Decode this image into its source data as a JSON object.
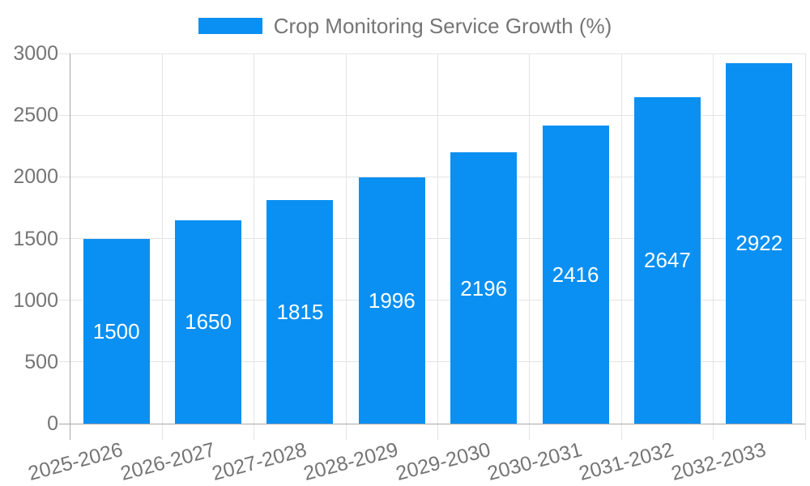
{
  "legend": {
    "label": "Crop Monitoring Service Growth (%)",
    "swatch_color": "#0a90f2",
    "text_color": "#757575"
  },
  "chart_data": {
    "type": "bar",
    "title": "Crop Monitoring Service Growth (%)",
    "categories": [
      "2025-2026",
      "2026-2027",
      "2027-2028",
      "2028-2029",
      "2029-2030",
      "2030-2031",
      "2031-2032",
      "2032-2033"
    ],
    "values": [
      1500,
      1650,
      1815,
      1996,
      2196,
      2416,
      2647,
      2922
    ],
    "data_labels": [
      "1500",
      "1650",
      "1815",
      "1996",
      "2196",
      "2416",
      "2647",
      "2922"
    ],
    "xlabel": "",
    "ylabel": "",
    "ylim": [
      0,
      3000
    ],
    "yticks": [
      0,
      500,
      1000,
      1500,
      2000,
      2500,
      3000
    ],
    "grid": true,
    "legend_position": "top-center",
    "x_tick_rotation_deg": -15,
    "bar_color": "#0a90f2",
    "data_label_color": "#ffffff",
    "axis_text_color": "#757575",
    "gridline_color": "#e4e4e4",
    "axis_line_color": "#a8a8a8",
    "background_color": "#ffffff"
  }
}
